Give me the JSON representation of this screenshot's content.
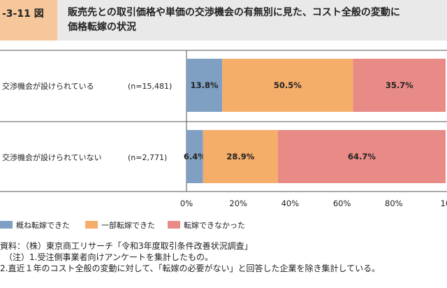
{
  "figure": {
    "label": "-3-11 図",
    "title": "販売先との取引価格や単価の交渉機会の有無別に見た、コスト全般の変動に\n価格転嫁の状況"
  },
  "chart_data": {
    "type": "bar",
    "orientation": "horizontal",
    "stacked": true,
    "categories": [
      "交渉機会が設けられている",
      "交渉機会が設けられていない"
    ],
    "sample_sizes": [
      "(n=15,481)",
      "(n=2,771)"
    ],
    "series": [
      {
        "name": "概ね転嫁できた",
        "values": [
          13.8,
          6.4
        ],
        "labels": [
          "13.8%",
          "6.4%"
        ],
        "color": "#7fa0c2"
      },
      {
        "name": "一部転嫁できた",
        "values": [
          50.5,
          28.9
        ],
        "labels": [
          "50.5%",
          "28.9%"
        ],
        "color": "#f5ad6a"
      },
      {
        "name": "転嫁できなかった",
        "values": [
          35.7,
          64.7
        ],
        "labels": [
          "35.7%",
          "64.7%"
        ],
        "color": "#e88a86"
      }
    ],
    "xlim": [
      0,
      100
    ],
    "xticks": [
      "0%",
      "20%",
      "40%",
      "60%",
      "80%",
      "10"
    ],
    "legend_position": "bottom-left",
    "grid": false
  },
  "notes": [
    "資料：（株）東京商工リサーチ「令和3年度取引条件改善状況調査」",
    "（注）1.受注側事業者向けアンケートを集計したもの。",
    "2.直近１年のコスト全般の変動に対して、「転嫁の必要がない」と回答した企業を除き集計している。"
  ]
}
